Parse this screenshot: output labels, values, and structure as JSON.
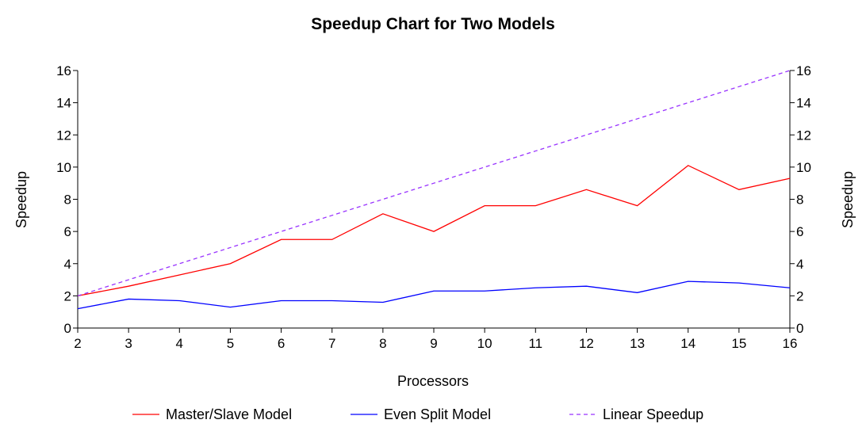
{
  "chart_data": {
    "type": "line",
    "title": "Speedup Chart for Two Models",
    "xlabel": "Processors",
    "ylabel": "Speedup",
    "y2label": "Speedup",
    "x": [
      2,
      3,
      4,
      5,
      6,
      7,
      8,
      9,
      10,
      11,
      12,
      13,
      14,
      15,
      16
    ],
    "xlim": [
      2,
      16
    ],
    "ylim": [
      0,
      16
    ],
    "yticks": [
      0,
      2,
      4,
      6,
      8,
      10,
      12,
      14,
      16
    ],
    "grid": false,
    "legend_position": "bottom",
    "series": [
      {
        "name": "Master/Slave Model",
        "color": "#ff0000",
        "style": "solid",
        "values": [
          2.0,
          2.6,
          3.3,
          4.0,
          5.5,
          5.5,
          7.1,
          6.0,
          7.6,
          7.6,
          8.6,
          7.6,
          10.1,
          8.6,
          9.3
        ]
      },
      {
        "name": "Even Split Model",
        "color": "#0000ff",
        "style": "solid",
        "values": [
          1.2,
          1.8,
          1.7,
          1.3,
          1.7,
          1.7,
          1.6,
          2.3,
          2.3,
          2.5,
          2.6,
          2.2,
          2.9,
          2.8,
          2.5
        ]
      },
      {
        "name": "Linear Speedup",
        "color": "#9933ff",
        "style": "dashed",
        "values": [
          2,
          3,
          4,
          5,
          6,
          7,
          8,
          9,
          10,
          11,
          12,
          13,
          14,
          15,
          16
        ]
      }
    ]
  }
}
